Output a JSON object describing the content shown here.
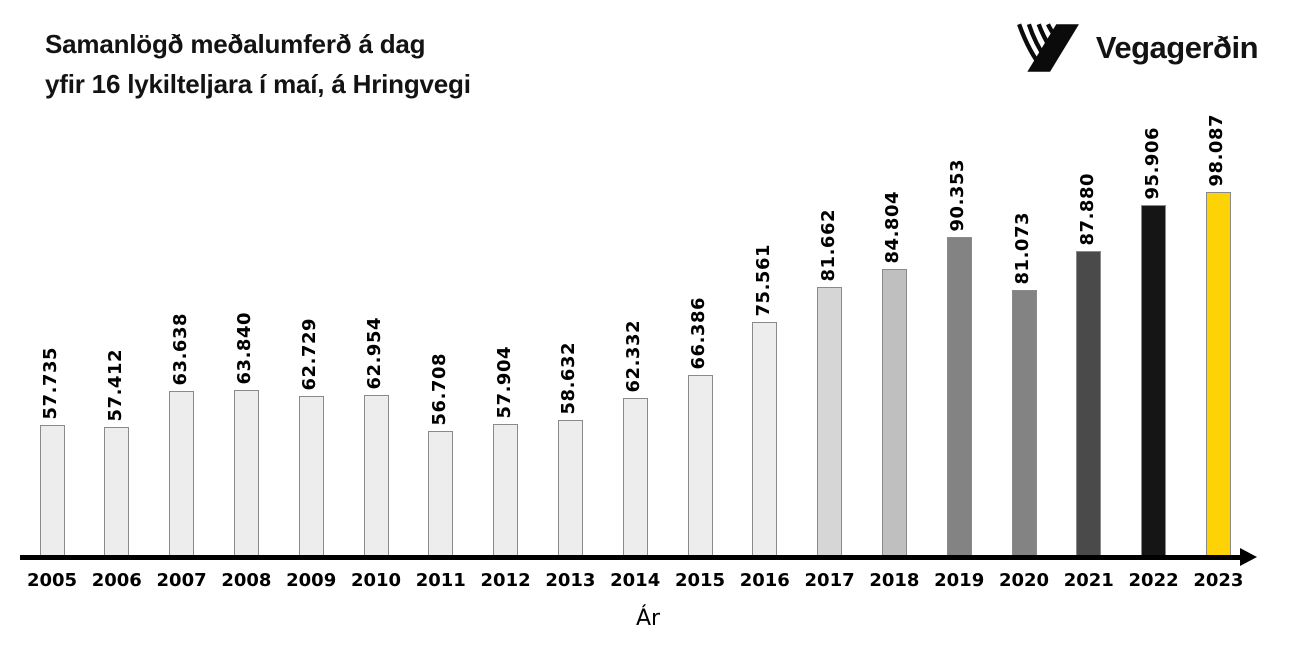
{
  "title": {
    "line1": "Samanlögð meðalumferð á dag",
    "line2": "yfir 16 lykilteljara í maí, á Hringvegi"
  },
  "logo": {
    "text": "Vegagerðin"
  },
  "chart_data": {
    "type": "bar",
    "title": "Samanlögð meðalumferð á dag yfir 16 lykilteljara í maí, á Hringvegi",
    "xlabel": "Ár",
    "ylabel": "",
    "categories": [
      "2005",
      "2006",
      "2007",
      "2008",
      "2009",
      "2010",
      "2011",
      "2012",
      "2013",
      "2014",
      "2015",
      "2016",
      "2017",
      "2018",
      "2019",
      "2020",
      "2021",
      "2022",
      "2023"
    ],
    "values": [
      57735,
      57412,
      63638,
      63840,
      62729,
      62954,
      56708,
      57904,
      58632,
      62332,
      66386,
      75561,
      81662,
      84804,
      90353,
      81073,
      87880,
      95906,
      98087
    ],
    "value_labels": [
      "57.735",
      "57.412",
      "63.638",
      "63.840",
      "62.729",
      "62.954",
      "56.708",
      "57.904",
      "58.632",
      "62.332",
      "66.386",
      "75.561",
      "81.662",
      "84.804",
      "90.353",
      "81.073",
      "87.880",
      "95.906",
      "98.087"
    ],
    "value_label_rotation": -90,
    "bar_colors": [
      "#ededed",
      "#ededed",
      "#ededed",
      "#ededed",
      "#ededed",
      "#ededed",
      "#ededed",
      "#ededed",
      "#ededed",
      "#ededed",
      "#ededed",
      "#ededed",
      "#d6d6d6",
      "#bfbfbf",
      "#838383",
      "#838383",
      "#4a4a4a",
      "#151515",
      "#fdd305"
    ],
    "bar_border_color": "#8a8a8a",
    "ylim": [
      35000,
      100000
    ],
    "grid": false,
    "legend": false,
    "axis_color": "#000000",
    "background": "#ffffff"
  }
}
